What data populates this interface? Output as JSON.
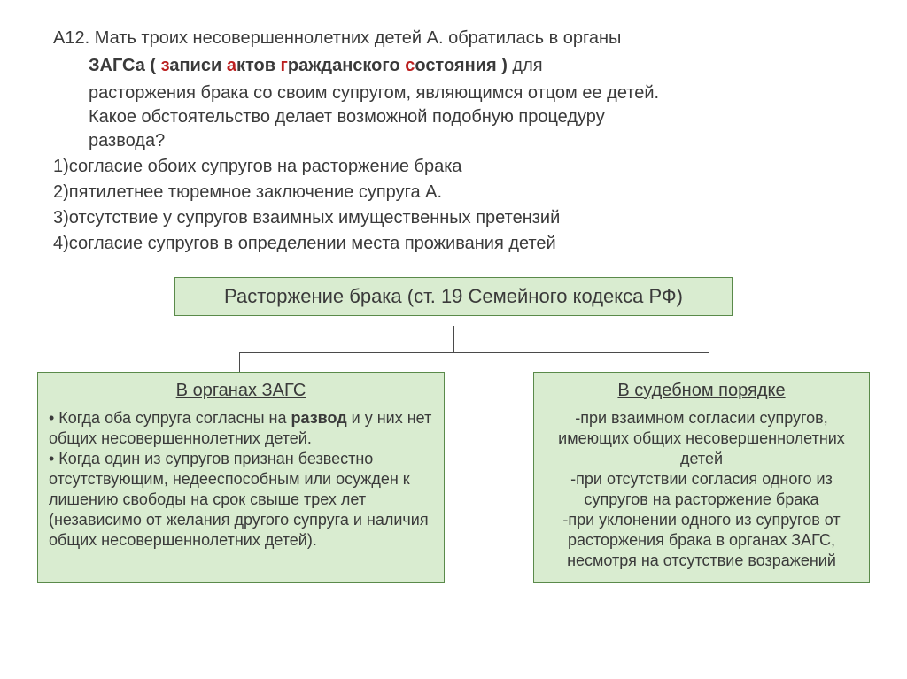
{
  "question": {
    "number": "А12.",
    "intro": "Мать троих несовершеннолетних детей А. обратилась в органы",
    "bold_prefix": "ЗАГСа ( ",
    "bold_z": "з",
    "bold_zapisi": "аписи  ",
    "bold_a": "а",
    "bold_ktov": "ктов  ",
    "bold_g": "г",
    "bold_razh": "ражданского ",
    "bold_s": "с",
    "bold_ost": "остояния )",
    "cont1": " для",
    "cont2": "расторжения брака со своим супругом, являющимся отцом ее детей.",
    "cont3": "Какое обстоятельство делает возможной подобную процедуру",
    "cont4": "развода?",
    "opt1": "1)согласие обоих супругов на расторжение брака",
    "opt2": "2)пятилетнее тюремное заключение супруга А.",
    "opt3": "3)отсутствие у супругов взаимных имущественных претензий",
    "opt4": "4)согласие супругов в определении места проживания детей"
  },
  "title": "Расторжение брака (ст. 19 Семейного кодекса РФ)",
  "left": {
    "title": "В органах ЗАГС",
    "b1a": "• Когда оба супруга согласны на ",
    "b1b": "развод",
    "b1c": " и у них нет общих несовершеннолетних детей.",
    "b2": "• Когда один из супругов признан безвестно отсутствующим, недееспособным или осужден к лишению свободы на срок свыше трех лет (независимо от желания другого супруга и наличия общих несовершеннолетних детей)."
  },
  "right": {
    "title": "В судебном порядке",
    "b1": "-при взаимном согласии супругов, имеющих общих несовершеннолетних детей",
    "b2": "-при отсутствии согласия одного из супругов на расторжение брака",
    "b3": "-при уклонении одного из супругов от расторжения брака в органах ЗАГС, несмотря на отсутствие возражений"
  },
  "colors": {
    "box_bg": "#d9ecd0",
    "box_border": "#5a8a4a",
    "red": "#bb1f1f",
    "text": "#3a3a3a"
  }
}
